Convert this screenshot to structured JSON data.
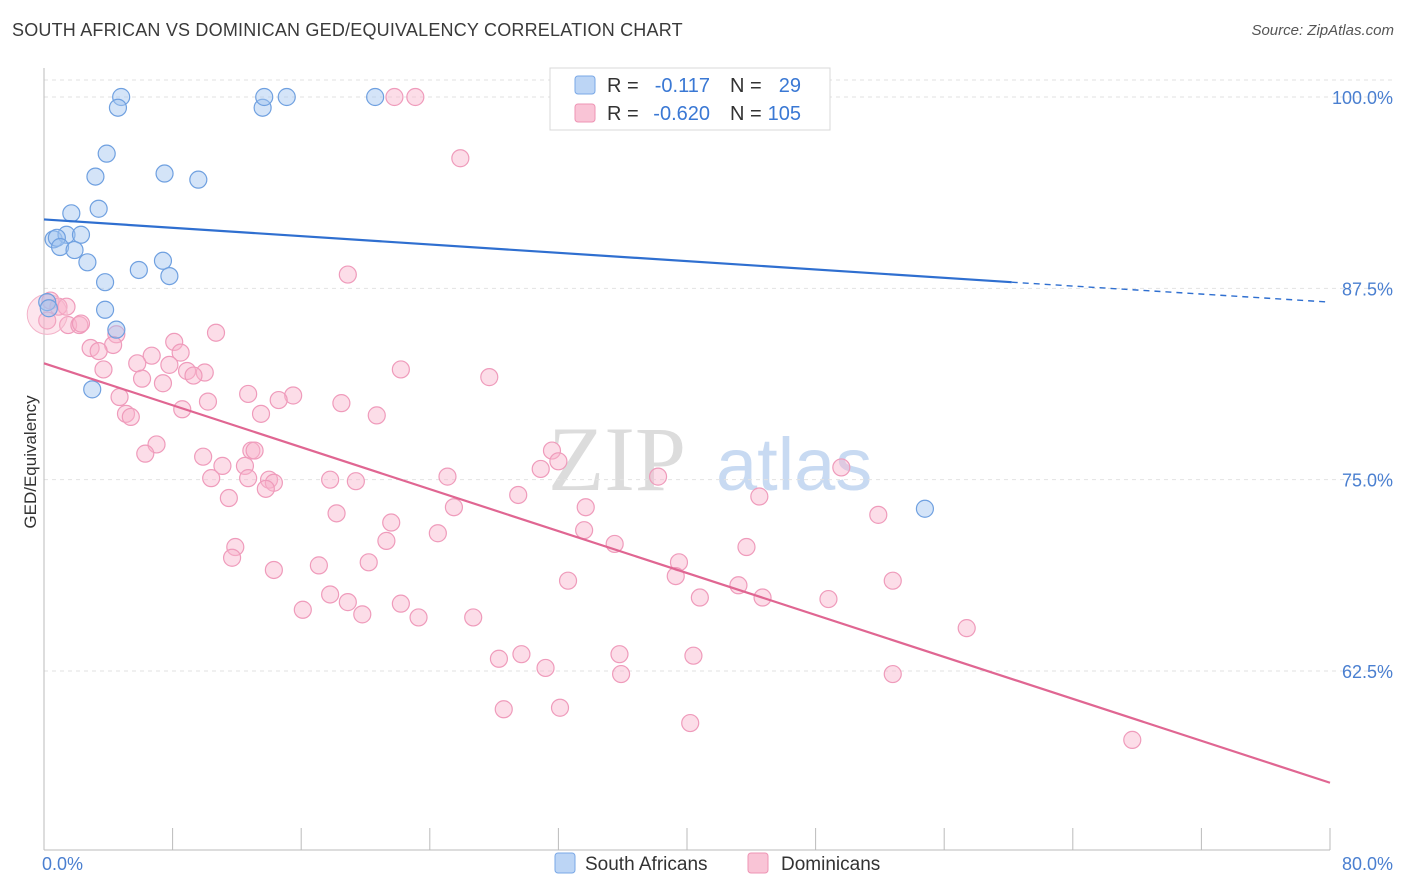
{
  "header": {
    "title": "SOUTH AFRICAN VS DOMINICAN GED/EQUIVALENCY CORRELATION CHART",
    "source": "Source: ZipAtlas.com"
  },
  "watermark": {
    "zip": "ZIP",
    "atlas": "atlas"
  },
  "stats_legend": {
    "rows": [
      {
        "r_label": "R =",
        "r_value": "-0.117",
        "n_label": "N =",
        "n_value": "29",
        "color": "#9ec2f0"
      },
      {
        "r_label": "R =",
        "r_value": "-0.620",
        "n_label": "N =",
        "n_value": "105",
        "color": "#f5aac4"
      }
    ]
  },
  "chart_data": {
    "type": "scatter",
    "title": "SOUTH AFRICAN VS DOMINICAN GED/EQUIVALENCY CORRELATION CHART",
    "xlabel": "",
    "ylabel": "GED/Equivalency",
    "xlim": [
      0,
      80
    ],
    "ylim": [
      50.5,
      101.5
    ],
    "x_tick_labels": [
      "0.0%",
      "80.0%"
    ],
    "y_ticks": [
      62.5,
      75.0,
      87.5,
      100.0
    ],
    "y_tick_labels": [
      "62.5%",
      "75.0%",
      "87.5%",
      "100.0%"
    ],
    "grid": true,
    "legend_position": "bottom",
    "colors": {
      "south_africans": "#4a8ee0",
      "dominicans": "#ea6f9b"
    },
    "series": [
      {
        "name": "South Africans",
        "color": "#4a8ee0",
        "points": [
          [
            4.8,
            100.0
          ],
          [
            4.6,
            99.3
          ],
          [
            13.6,
            99.3
          ],
          [
            13.7,
            100.0
          ],
          [
            15.1,
            100.0
          ],
          [
            20.6,
            100.0
          ],
          [
            3.9,
            96.3
          ],
          [
            3.2,
            94.8
          ],
          [
            7.5,
            95.0
          ],
          [
            9.6,
            94.6
          ],
          [
            3.4,
            92.7
          ],
          [
            1.7,
            92.4
          ],
          [
            0.6,
            90.7
          ],
          [
            1.4,
            91.0
          ],
          [
            2.3,
            91.0
          ],
          [
            0.8,
            90.8
          ],
          [
            1.0,
            90.2
          ],
          [
            1.9,
            90.0
          ],
          [
            2.7,
            89.2
          ],
          [
            7.4,
            89.3
          ],
          [
            5.9,
            88.7
          ],
          [
            7.8,
            88.3
          ],
          [
            3.8,
            87.9
          ],
          [
            0.2,
            86.6
          ],
          [
            0.3,
            86.2
          ],
          [
            3.8,
            86.1
          ],
          [
            4.5,
            84.8
          ],
          [
            3.0,
            80.9
          ],
          [
            54.8,
            73.1
          ]
        ]
      },
      {
        "name": "Dominicans",
        "color": "#ea6f9b",
        "points": [
          [
            21.8,
            100.0
          ],
          [
            23.1,
            100.0
          ],
          [
            25.9,
            96.0
          ],
          [
            18.9,
            88.4
          ],
          [
            0.4,
            86.7
          ],
          [
            0.9,
            86.3
          ],
          [
            1.4,
            86.3
          ],
          [
            1.5,
            85.1
          ],
          [
            2.2,
            85.1
          ],
          [
            2.3,
            85.2
          ],
          [
            4.5,
            84.5
          ],
          [
            10.7,
            84.6
          ],
          [
            8.1,
            84.0
          ],
          [
            2.9,
            83.6
          ],
          [
            4.3,
            83.8
          ],
          [
            3.4,
            83.4
          ],
          [
            8.5,
            83.3
          ],
          [
            6.7,
            83.1
          ],
          [
            5.8,
            82.6
          ],
          [
            7.8,
            82.5
          ],
          [
            10.0,
            82.0
          ],
          [
            3.7,
            82.2
          ],
          [
            8.9,
            82.1
          ],
          [
            9.3,
            81.8
          ],
          [
            6.1,
            81.6
          ],
          [
            7.4,
            81.3
          ],
          [
            22.2,
            82.2
          ],
          [
            27.7,
            81.7
          ],
          [
            12.7,
            80.6
          ],
          [
            15.5,
            80.5
          ],
          [
            4.7,
            80.4
          ],
          [
            14.6,
            80.2
          ],
          [
            18.5,
            80.0
          ],
          [
            10.2,
            80.1
          ],
          [
            8.6,
            79.6
          ],
          [
            5.1,
            79.3
          ],
          [
            5.4,
            79.1
          ],
          [
            13.5,
            79.3
          ],
          [
            20.7,
            79.2
          ],
          [
            7.0,
            77.3
          ],
          [
            12.9,
            76.9
          ],
          [
            6.3,
            76.7
          ],
          [
            9.9,
            76.5
          ],
          [
            13.1,
            76.9
          ],
          [
            31.6,
            76.9
          ],
          [
            11.1,
            75.9
          ],
          [
            12.5,
            75.9
          ],
          [
            30.9,
            75.7
          ],
          [
            49.6,
            75.8
          ],
          [
            32.0,
            76.2
          ],
          [
            10.4,
            75.1
          ],
          [
            12.7,
            75.1
          ],
          [
            14.0,
            75.0
          ],
          [
            14.3,
            74.8
          ],
          [
            17.8,
            75.0
          ],
          [
            19.4,
            74.9
          ],
          [
            25.1,
            75.2
          ],
          [
            38.2,
            75.2
          ],
          [
            13.8,
            74.4
          ],
          [
            11.5,
            73.8
          ],
          [
            29.5,
            74.0
          ],
          [
            44.5,
            73.9
          ],
          [
            25.5,
            73.2
          ],
          [
            33.7,
            73.2
          ],
          [
            18.2,
            72.8
          ],
          [
            21.6,
            72.2
          ],
          [
            51.9,
            72.7
          ],
          [
            24.5,
            71.5
          ],
          [
            33.6,
            71.7
          ],
          [
            21.3,
            71.0
          ],
          [
            35.5,
            70.8
          ],
          [
            11.9,
            70.6
          ],
          [
            43.7,
            70.6
          ],
          [
            11.7,
            69.9
          ],
          [
            17.1,
            69.4
          ],
          [
            20.2,
            69.6
          ],
          [
            39.5,
            69.6
          ],
          [
            14.3,
            69.1
          ],
          [
            39.3,
            68.7
          ],
          [
            32.6,
            68.4
          ],
          [
            43.2,
            68.1
          ],
          [
            52.8,
            68.4
          ],
          [
            17.8,
            67.5
          ],
          [
            18.9,
            67.0
          ],
          [
            22.2,
            66.9
          ],
          [
            40.8,
            67.3
          ],
          [
            44.7,
            67.3
          ],
          [
            48.8,
            67.2
          ],
          [
            16.1,
            66.5
          ],
          [
            19.8,
            66.2
          ],
          [
            23.3,
            66.0
          ],
          [
            26.7,
            66.0
          ],
          [
            57.4,
            65.3
          ],
          [
            29.7,
            63.6
          ],
          [
            28.3,
            63.3
          ],
          [
            35.8,
            63.6
          ],
          [
            40.4,
            63.5
          ],
          [
            31.2,
            62.7
          ],
          [
            35.9,
            62.3
          ],
          [
            52.8,
            62.3
          ],
          [
            28.6,
            60.0
          ],
          [
            32.1,
            60.1
          ],
          [
            40.2,
            59.1
          ],
          [
            67.7,
            58.0
          ],
          [
            0.2,
            85.4
          ]
        ]
      }
    ],
    "trend_lines": [
      {
        "series": "South Africans",
        "color": "#2f6fd0",
        "solid_from": [
          0,
          92.0
        ],
        "solid_to": [
          60.2,
          87.9
        ],
        "dashed_to": [
          80,
          86.6
        ]
      },
      {
        "series": "Dominicans",
        "color": "#e06692",
        "solid_from": [
          0,
          82.6
        ],
        "solid_to": [
          80,
          55.2
        ]
      }
    ]
  },
  "bottom_legend": {
    "items": [
      {
        "label": "South Africans",
        "color": "#b8d3f5"
      },
      {
        "label": "Dominicans",
        "color": "#f9c4d6"
      }
    ]
  }
}
